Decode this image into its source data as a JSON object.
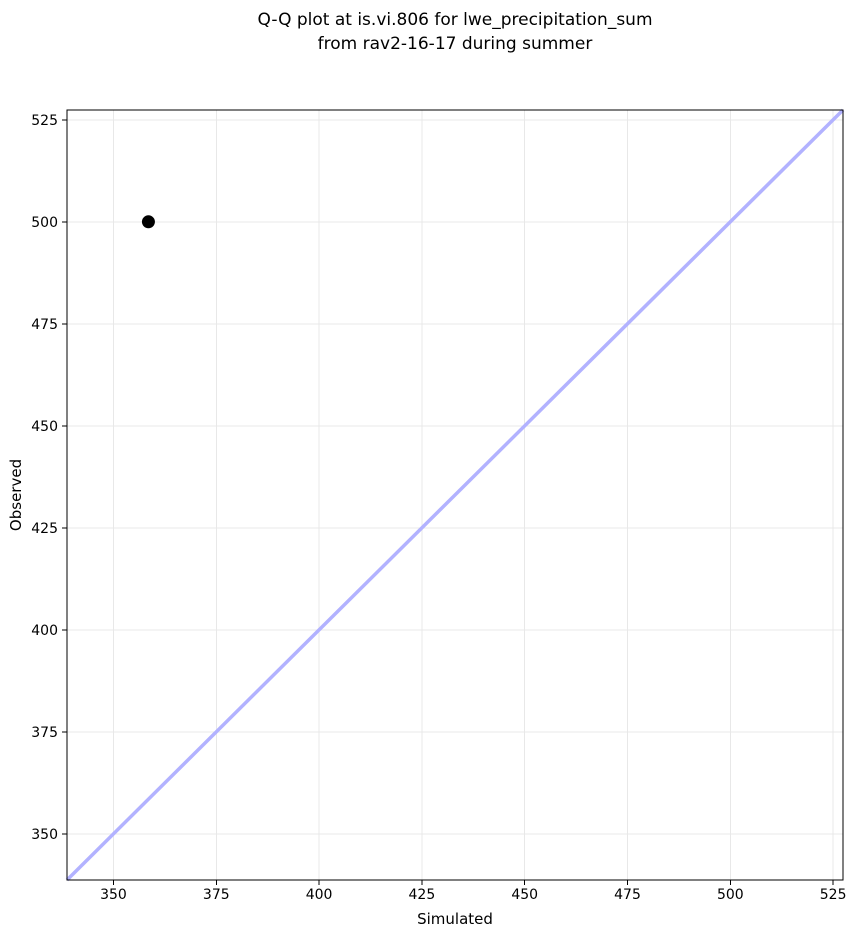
{
  "chart_data": {
    "type": "scatter",
    "title": "Q-Q plot at is.vi.806 for lwe_precipitation_sum\nfrom rav2-16-17 during summer",
    "title_lines": [
      "Q-Q plot at is.vi.806 for lwe_precipitation_sum",
      "from rav2-16-17 during summer"
    ],
    "xlabel": "Simulated",
    "ylabel": "Observed",
    "xlim": [
      338.7,
      527.4
    ],
    "ylim": [
      338.7,
      527.4
    ],
    "xticks": [
      350,
      375,
      400,
      425,
      450,
      475,
      500,
      525
    ],
    "yticks": [
      350,
      375,
      400,
      425,
      450,
      475,
      500,
      525
    ],
    "grid": true,
    "legend": "none",
    "series": [
      {
        "name": "identity-line",
        "type": "line",
        "color": "#b2b2ff",
        "line_width": 3.5,
        "points": [
          [
            338.7,
            338.7
          ],
          [
            527.4,
            527.4
          ]
        ]
      },
      {
        "name": "quantile-points",
        "type": "scatter",
        "color": "#000000",
        "marker_size": 13,
        "points": [
          [
            358.5,
            500
          ]
        ]
      }
    ],
    "colors": {
      "background": "#ffffff",
      "grid": "#e8e8e8",
      "spine": "#000000",
      "text": "#000000"
    }
  }
}
